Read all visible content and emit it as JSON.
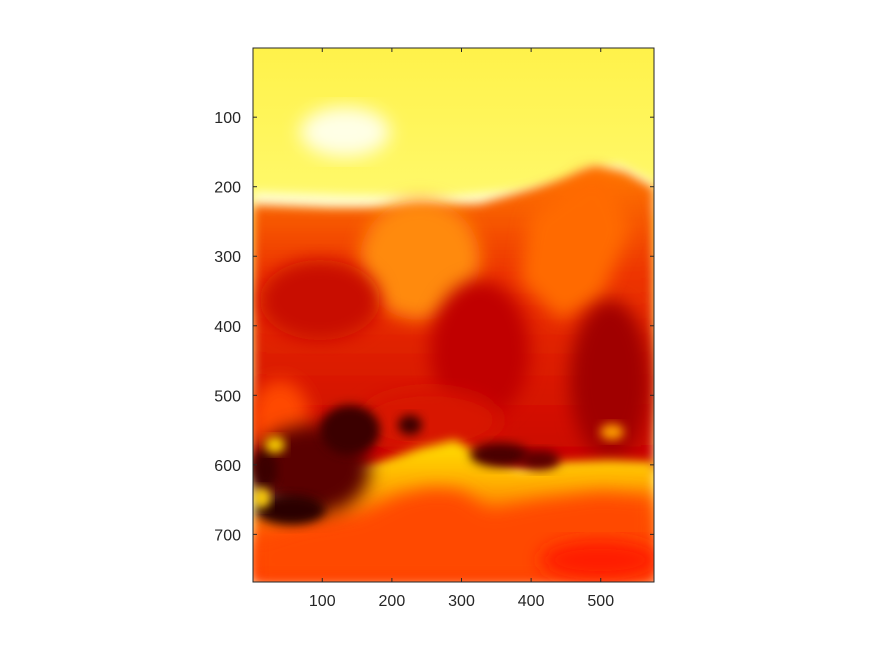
{
  "chart_data": {
    "type": "heatmap",
    "colormap": "hot",
    "title": "",
    "xlabel": "",
    "ylabel": "",
    "xlim": [
      1,
      576
    ],
    "ylim": [
      1,
      768
    ],
    "y_direction": "reverse",
    "grid": false,
    "x_ticks": [
      {
        "value": 100,
        "label": "100"
      },
      {
        "value": 200,
        "label": "200"
      },
      {
        "value": 300,
        "label": "300"
      },
      {
        "value": 400,
        "label": "400"
      },
      {
        "value": 500,
        "label": "500"
      }
    ],
    "y_ticks": [
      {
        "value": 100,
        "label": "100"
      },
      {
        "value": 200,
        "label": "200"
      },
      {
        "value": 300,
        "label": "300"
      },
      {
        "value": 400,
        "label": "400"
      },
      {
        "value": 500,
        "label": "500"
      },
      {
        "value": 600,
        "label": "600"
      },
      {
        "value": 700,
        "label": "700"
      }
    ]
  }
}
